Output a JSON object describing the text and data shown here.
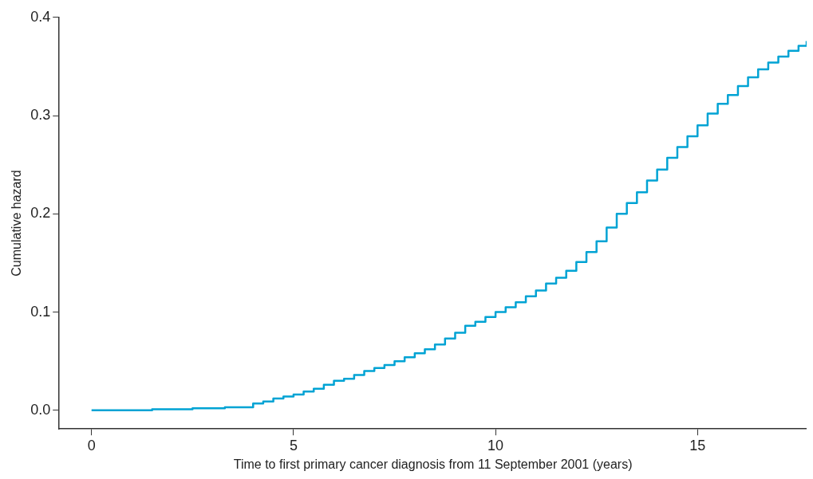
{
  "chart_data": {
    "type": "step",
    "xlabel": "Time to first primary cancer diagnosis from 11 September 2001 (years)",
    "ylabel": "Cumulative hazard",
    "x": [
      0,
      1.5,
      2.5,
      3.3,
      4,
      4.25,
      4.5,
      4.75,
      5,
      5.25,
      5.5,
      5.75,
      6,
      6.25,
      6.5,
      6.75,
      7,
      7.25,
      7.5,
      7.75,
      8,
      8.25,
      8.5,
      8.75,
      9,
      9.25,
      9.5,
      9.75,
      10,
      10.25,
      10.5,
      10.75,
      11,
      11.25,
      11.5,
      11.75,
      12,
      12.25,
      12.5,
      12.75,
      13,
      13.25,
      13.5,
      13.75,
      14,
      14.25,
      14.5,
      14.75,
      15,
      15.25,
      15.5,
      15.75,
      16,
      16.25,
      16.5,
      16.75,
      17,
      17.25,
      17.5,
      17.7
    ],
    "values": [
      0,
      0.001,
      0.002,
      0.003,
      0.007,
      0.009,
      0.012,
      0.014,
      0.016,
      0.019,
      0.022,
      0.026,
      0.03,
      0.032,
      0.036,
      0.04,
      0.043,
      0.046,
      0.05,
      0.054,
      0.058,
      0.062,
      0.067,
      0.073,
      0.079,
      0.086,
      0.09,
      0.095,
      0.1,
      0.105,
      0.11,
      0.116,
      0.122,
      0.129,
      0.135,
      0.142,
      0.151,
      0.161,
      0.172,
      0.186,
      0.2,
      0.211,
      0.222,
      0.234,
      0.245,
      0.257,
      0.268,
      0.279,
      0.29,
      0.302,
      0.312,
      0.321,
      0.33,
      0.339,
      0.347,
      0.354,
      0.36,
      0.366,
      0.371,
      0.376
    ],
    "color": "#00a3d4",
    "xlim": [
      -0.8,
      17.7
    ],
    "ylim": [
      -0.019,
      0.4
    ],
    "xticks": [
      0,
      5,
      10,
      15
    ],
    "yticks": [
      {
        "value": 0,
        "label": "0.0"
      },
      0.1,
      0.2,
      0.3,
      0.4
    ],
    "legend": false,
    "grid": false
  }
}
